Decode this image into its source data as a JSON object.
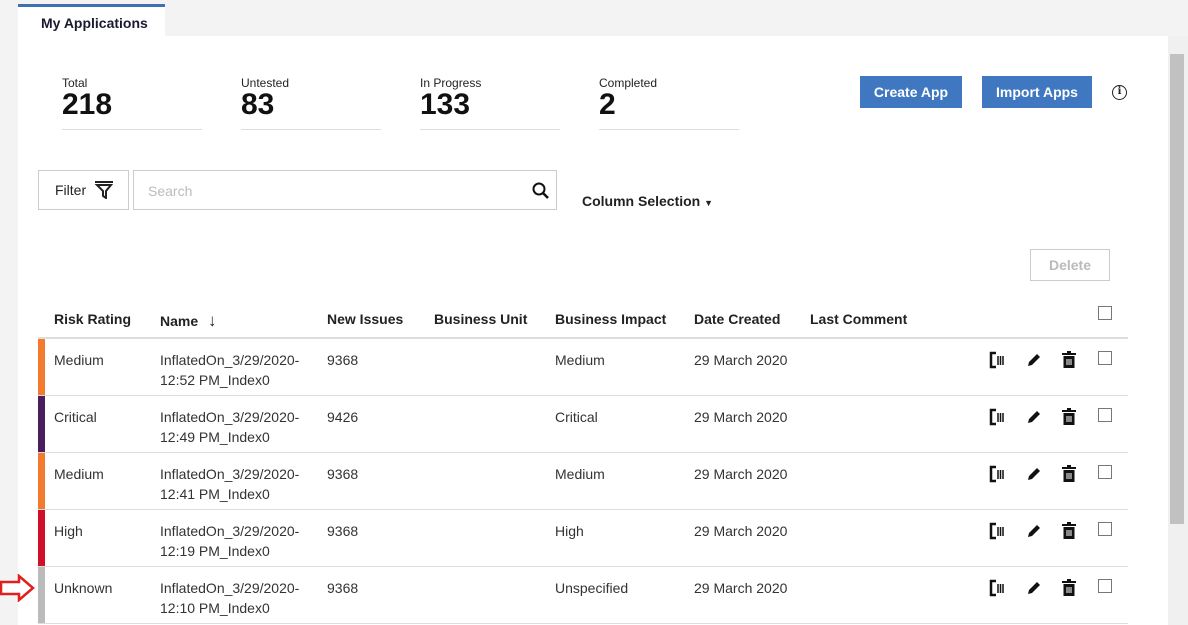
{
  "tab": "My Applications",
  "stats": [
    {
      "label": "Total",
      "value": "218"
    },
    {
      "label": "Untested",
      "value": "83"
    },
    {
      "label": "In Progress",
      "value": "133"
    },
    {
      "label": "Completed",
      "value": "2"
    }
  ],
  "buttons": {
    "create": "Create App",
    "import": "Import Apps",
    "delete": "Delete",
    "filter": "Filter",
    "column_selection": "Column Selection"
  },
  "search": {
    "placeholder": "Search",
    "value": ""
  },
  "columns": [
    "Risk Rating",
    "Name",
    "New Issues",
    "Business Unit",
    "Business Impact",
    "Date Created",
    "Last Comment"
  ],
  "rows": [
    {
      "risk": "Medium",
      "color": "#f47a30",
      "name1": "InflatedOn_3/29/2020-",
      "name2": "12:52 PM_Index0",
      "issues": "9368",
      "unit": "",
      "impact": "Medium",
      "date": "29 March 2020",
      "comment": ""
    },
    {
      "risk": "Critical",
      "color": "#4a1e5e",
      "name1": "InflatedOn_3/29/2020-",
      "name2": "12:49 PM_Index0",
      "issues": "9426",
      "unit": "",
      "impact": "Critical",
      "date": "29 March 2020",
      "comment": ""
    },
    {
      "risk": "Medium",
      "color": "#f47a30",
      "name1": "InflatedOn_3/29/2020-",
      "name2": "12:41 PM_Index0",
      "issues": "9368",
      "unit": "",
      "impact": "Medium",
      "date": "29 March 2020",
      "comment": ""
    },
    {
      "risk": "High",
      "color": "#d0102a",
      "name1": "InflatedOn_3/29/2020-",
      "name2": "12:19 PM_Index0",
      "issues": "9368",
      "unit": "",
      "impact": "High",
      "date": "29 March 2020",
      "comment": ""
    },
    {
      "risk": "Unknown",
      "color": "#bbbbbb",
      "name1": "InflatedOn_3/29/2020-",
      "name2": "12:10 PM_Index0",
      "issues": "9368",
      "unit": "",
      "impact": "Unspecified",
      "date": "29 March 2020",
      "comment": ""
    }
  ],
  "colors": {
    "accent": "#3f78c0",
    "annotation_arrow": "#e0201c"
  }
}
